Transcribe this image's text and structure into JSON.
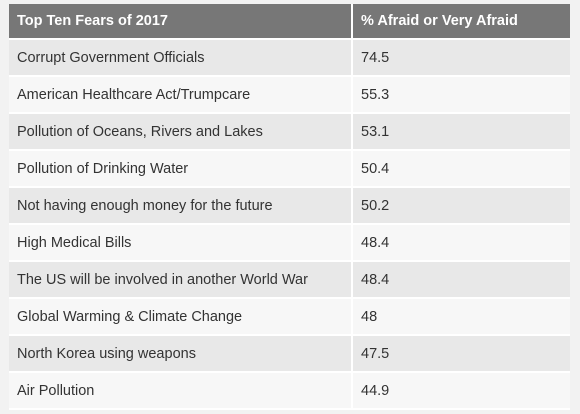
{
  "chart_data": {
    "type": "table",
    "columns": [
      "Top Ten Fears of 2017",
      "% Afraid or Very Afraid"
    ],
    "rows": [
      {
        "fear": "Corrupt Government Officials",
        "value": "74.5"
      },
      {
        "fear": "American Healthcare Act/Trumpcare",
        "value": "55.3"
      },
      {
        "fear": "Pollution of Oceans, Rivers and Lakes",
        "value": "53.1"
      },
      {
        "fear": "Pollution of Drinking Water",
        "value": "50.4"
      },
      {
        "fear": "Not having enough money for the future",
        "value": "50.2"
      },
      {
        "fear": "High Medical Bills",
        "value": "48.4"
      },
      {
        "fear": "The US will be involved in another World War",
        "value": "48.4"
      },
      {
        "fear": "Global Warming & Climate Change",
        "value": "48"
      },
      {
        "fear": "North Korea using weapons",
        "value": "47.5"
      },
      {
        "fear": "Air Pollution",
        "value": "44.9"
      }
    ],
    "colors": {
      "header_bg": "#777777",
      "header_text": "#ffffff",
      "row_odd": "#e8e8e8",
      "row_even": "#f7f7f7",
      "text": "#333333"
    }
  }
}
